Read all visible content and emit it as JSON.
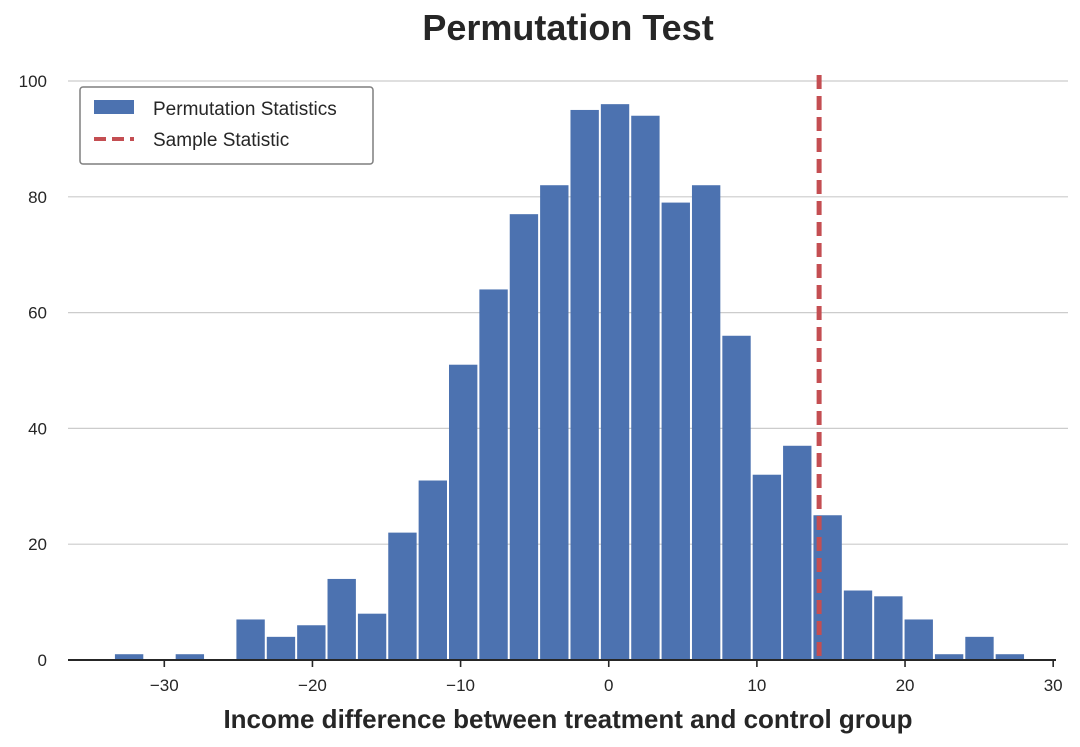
{
  "chart_data": {
    "type": "bar",
    "title": "Permutation Test",
    "xlabel": "Income difference between treatment and control group",
    "ylabel": "",
    "xlim": [
      -36.5,
      31
    ],
    "ylim": [
      0,
      100
    ],
    "grid": {
      "y": true,
      "x": false
    },
    "legend": {
      "placement": "top-left",
      "entries": [
        {
          "label": "Permutation Statistics",
          "kind": "bar"
        },
        {
          "label": "Sample Statistic",
          "kind": "dashed-line"
        }
      ]
    },
    "colors": {
      "bars": "#4c72b0",
      "sample_line": "#c44e52"
    },
    "bin_width": 2.05,
    "bin_left_edges": [
      -33.4,
      -31.35,
      -29.3,
      -27.25,
      -25.2,
      -23.15,
      -21.1,
      -19.05,
      -17.0,
      -14.95,
      -12.9,
      -10.85,
      -8.8,
      -6.75,
      -4.7,
      -2.65,
      -0.6,
      1.45,
      3.5,
      5.55,
      7.6,
      9.65,
      11.7,
      13.75,
      15.8,
      17.85,
      19.9,
      21.95,
      24.0,
      26.05
    ],
    "counts": [
      1,
      0,
      1,
      0,
      7,
      4,
      6,
      14,
      8,
      22,
      31,
      51,
      64,
      77,
      82,
      95,
      96,
      94,
      79,
      82,
      56,
      32,
      37,
      25,
      12,
      11,
      7,
      1,
      4,
      1
    ],
    "sample_statistic": 14.2,
    "x_ticks": [
      -30,
      -20,
      -10,
      0,
      10,
      20,
      30
    ],
    "x_tick_labels": [
      "−30",
      "−20",
      "−10",
      "0",
      "10",
      "20",
      "30"
    ],
    "y_ticks": [
      0,
      20,
      40,
      60,
      80,
      100
    ],
    "y_tick_labels": [
      "0",
      "20",
      "40",
      "60",
      "80",
      "100"
    ]
  }
}
